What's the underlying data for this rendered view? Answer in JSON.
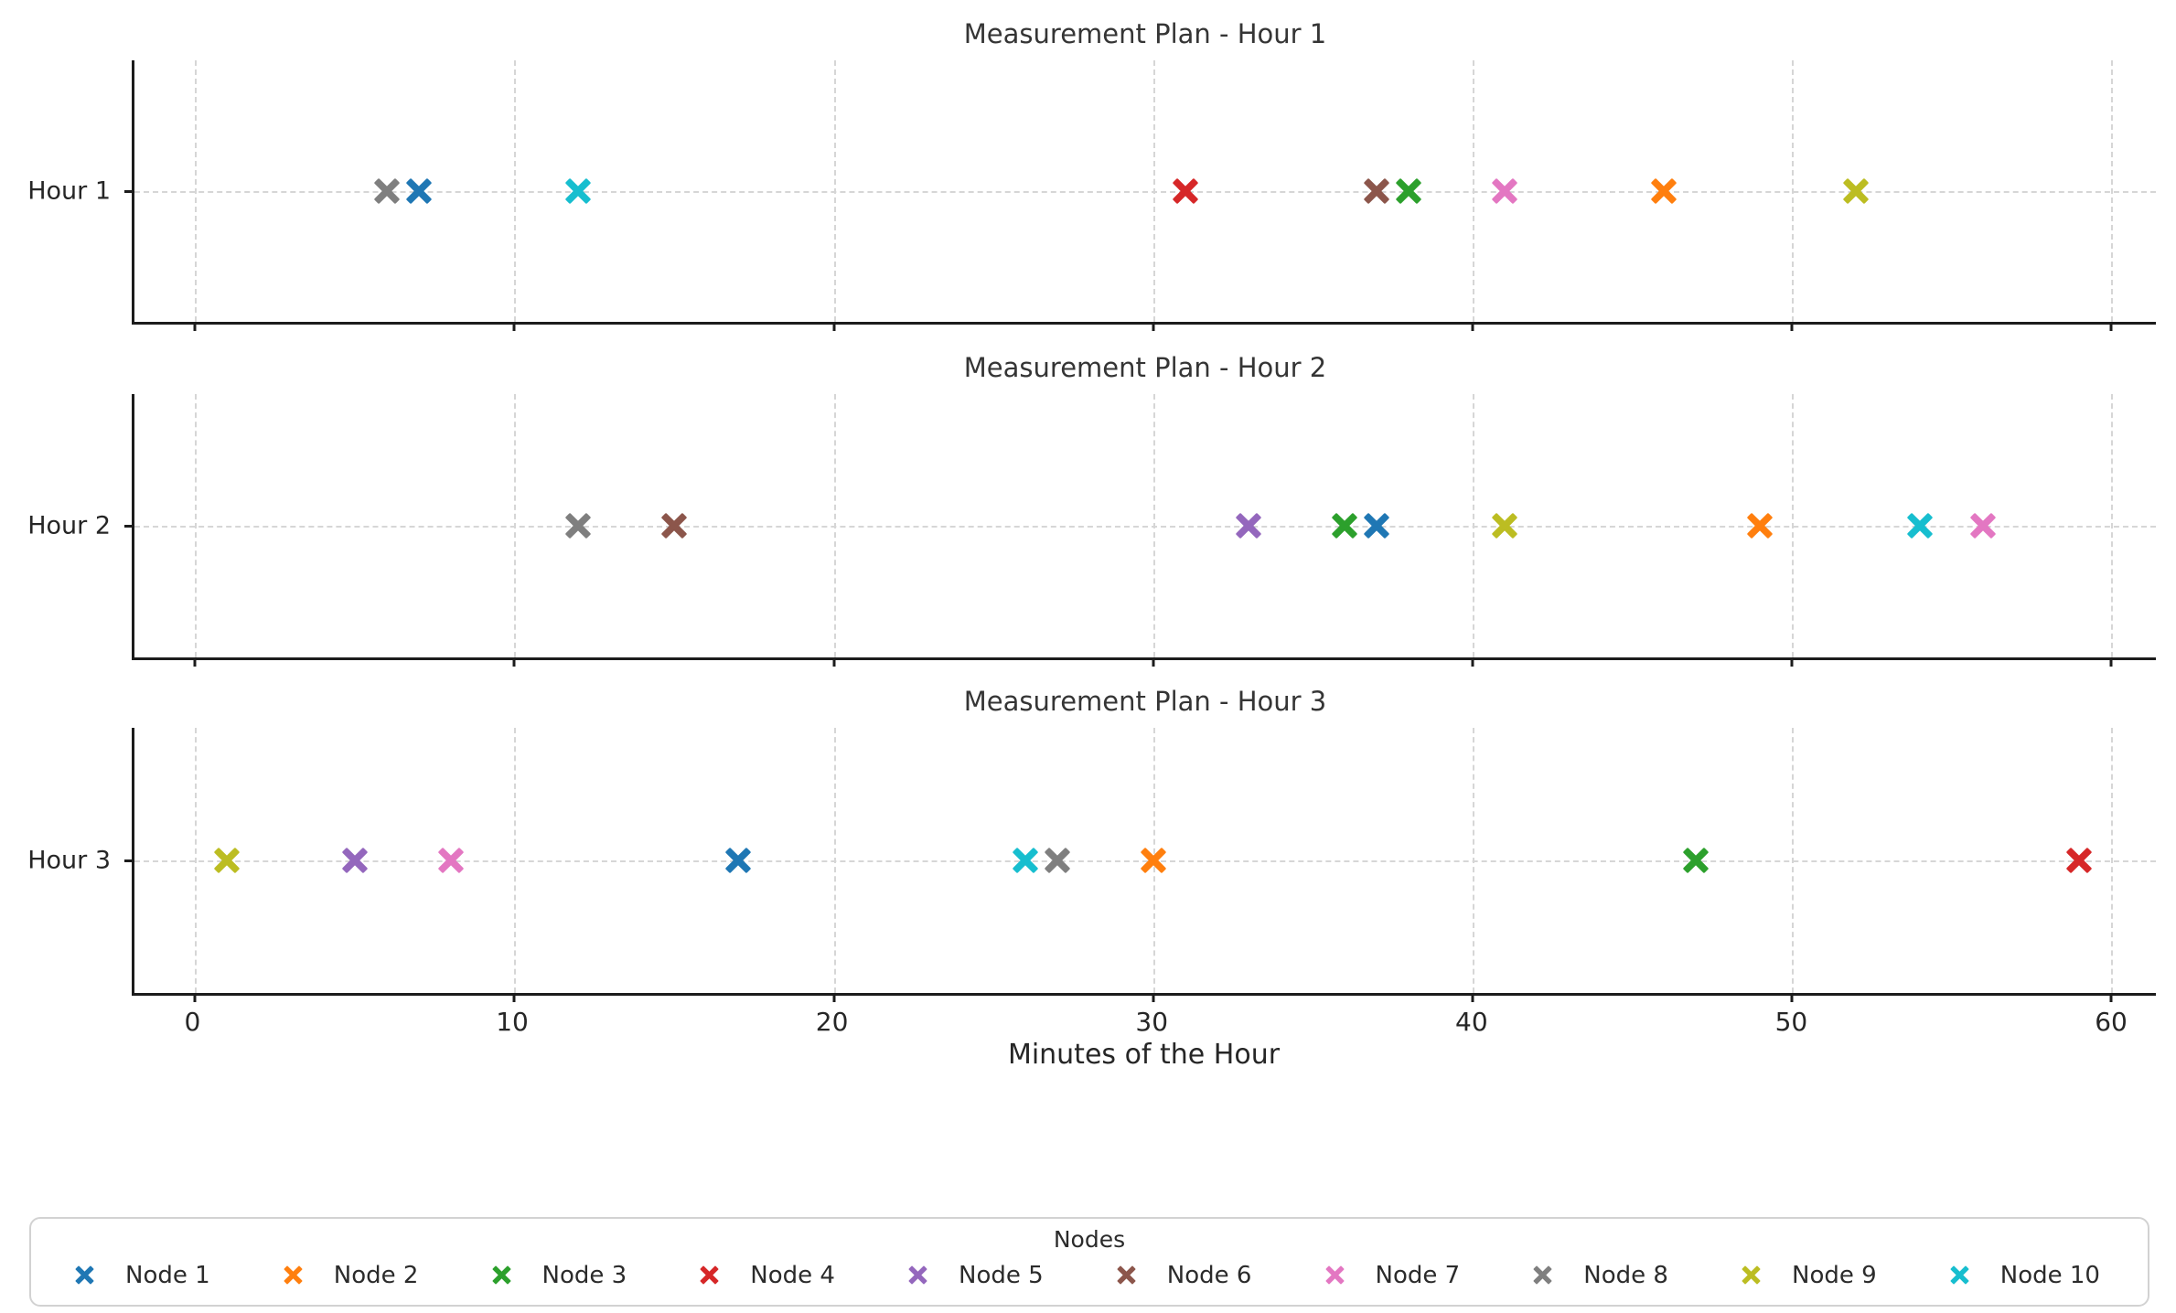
{
  "figure": {
    "background": "#ffffff",
    "text_color": "#2b2b2b",
    "grid_color": "#d6d6d6",
    "spine_color": "#1c1c1c"
  },
  "chart_data": {
    "type": "scatter",
    "marker": "X",
    "xlabel": "Minutes of the Hour",
    "x_ticks": [
      0,
      10,
      20,
      30,
      40,
      50,
      60
    ],
    "xlim": [
      -1.9,
      61.4
    ],
    "grid": "dashed",
    "legend_title": "Nodes",
    "legend_position": "bottom",
    "nodes": [
      {
        "name": "Node 1",
        "color": "#1f77b4"
      },
      {
        "name": "Node 2",
        "color": "#ff7f0e"
      },
      {
        "name": "Node 3",
        "color": "#2ca02c"
      },
      {
        "name": "Node 4",
        "color": "#d62728"
      },
      {
        "name": "Node 5",
        "color": "#9467bd"
      },
      {
        "name": "Node 6",
        "color": "#8c564b"
      },
      {
        "name": "Node 7",
        "color": "#e377c2"
      },
      {
        "name": "Node 8",
        "color": "#7f7f7f"
      },
      {
        "name": "Node 9",
        "color": "#bcbd22"
      },
      {
        "name": "Node 10",
        "color": "#17becf"
      }
    ],
    "subplots": [
      {
        "title": "Measurement Plan - Hour 1",
        "ylabel": "Hour 1",
        "points": [
          {
            "node": "Node 8",
            "minute": 6
          },
          {
            "node": "Node 1",
            "minute": 7
          },
          {
            "node": "Node 10",
            "minute": 12
          },
          {
            "node": "Node 4",
            "minute": 31
          },
          {
            "node": "Node 6",
            "minute": 37
          },
          {
            "node": "Node 3",
            "minute": 38
          },
          {
            "node": "Node 7",
            "minute": 41
          },
          {
            "node": "Node 2",
            "minute": 46
          },
          {
            "node": "Node 9",
            "minute": 52
          }
        ]
      },
      {
        "title": "Measurement Plan - Hour 2",
        "ylabel": "Hour 2",
        "points": [
          {
            "node": "Node 8",
            "minute": 12
          },
          {
            "node": "Node 6",
            "minute": 15
          },
          {
            "node": "Node 5",
            "minute": 33
          },
          {
            "node": "Node 3",
            "minute": 36
          },
          {
            "node": "Node 1",
            "minute": 37
          },
          {
            "node": "Node 9",
            "minute": 41
          },
          {
            "node": "Node 2",
            "minute": 49
          },
          {
            "node": "Node 10",
            "minute": 54
          },
          {
            "node": "Node 7",
            "minute": 56
          }
        ]
      },
      {
        "title": "Measurement Plan - Hour 3",
        "ylabel": "Hour 3",
        "points": [
          {
            "node": "Node 9",
            "minute": 1
          },
          {
            "node": "Node 5",
            "minute": 5
          },
          {
            "node": "Node 7",
            "minute": 8
          },
          {
            "node": "Node 1",
            "minute": 17
          },
          {
            "node": "Node 10",
            "minute": 26
          },
          {
            "node": "Node 8",
            "minute": 27
          },
          {
            "node": "Node 2",
            "minute": 30
          },
          {
            "node": "Node 3",
            "minute": 47
          },
          {
            "node": "Node 4",
            "minute": 59
          }
        ]
      }
    ]
  }
}
